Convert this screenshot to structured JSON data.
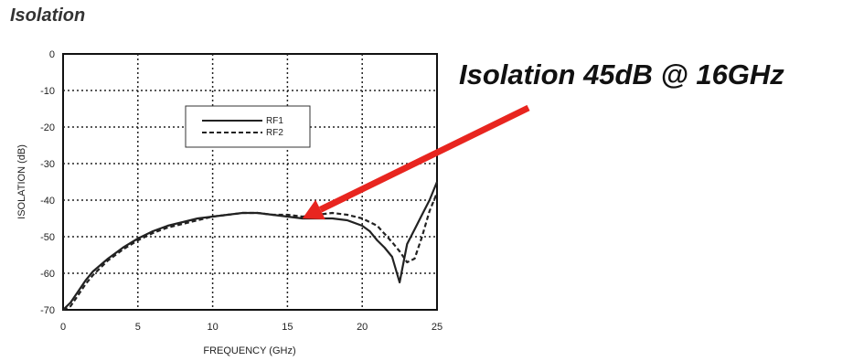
{
  "title": "Isolation",
  "annotation": {
    "text": "Isolation 45dB @ 16GHz",
    "arrow_color": "#e8251f",
    "points_to": {
      "x": 16,
      "y": -45
    }
  },
  "chart_data": {
    "type": "line",
    "title": "",
    "xlabel": "FREQUENCY (GHz)",
    "ylabel": "ISOLATION  (dB)",
    "xlim": [
      0,
      25
    ],
    "ylim": [
      -70,
      0
    ],
    "xticks": [
      0,
      5,
      10,
      15,
      20,
      25
    ],
    "yticks": [
      0,
      -10,
      -20,
      -30,
      -40,
      -50,
      -60,
      -70
    ],
    "grid": true,
    "grid_style": "dotted",
    "legend_position": "upper-center",
    "series": [
      {
        "name": "RF1",
        "style": "solid",
        "color": "#222222",
        "x": [
          0,
          0.5,
          1,
          1.5,
          2,
          3,
          4,
          5,
          6,
          7,
          8,
          9,
          10,
          11,
          12,
          13,
          14,
          15,
          16,
          17,
          18,
          19,
          20,
          20.5,
          21,
          21.5,
          22,
          22.5,
          23,
          23.5,
          24,
          24.5,
          25
        ],
        "y": [
          -70,
          -68,
          -65,
          -62,
          -59.5,
          -56,
          -53,
          -50.5,
          -48.5,
          -47,
          -46,
          -45,
          -44.5,
          -44,
          -43.5,
          -43.5,
          -44,
          -44.5,
          -45,
          -45,
          -45,
          -45.5,
          -47,
          -48.5,
          -51,
          -53,
          -55.5,
          -62.5,
          -52,
          -48,
          -44,
          -40,
          -35
        ]
      },
      {
        "name": "RF2",
        "style": "dashed",
        "color": "#222222",
        "x": [
          0,
          0.5,
          1,
          1.5,
          2,
          3,
          4,
          5,
          6,
          7,
          8,
          9,
          10,
          11,
          12,
          13,
          14,
          15,
          16,
          17,
          18,
          19,
          20,
          21,
          22,
          22.5,
          23,
          23.5,
          24,
          24.5,
          25
        ],
        "y": [
          -70,
          -69,
          -66,
          -63,
          -60.5,
          -56.5,
          -53.5,
          -51,
          -49,
          -47.5,
          -46.5,
          -45.5,
          -44.5,
          -44,
          -43.5,
          -43.5,
          -44,
          -44,
          -44.5,
          -44,
          -43.5,
          -44,
          -45,
          -47,
          -51.5,
          -54,
          -57,
          -56,
          -50,
          -43,
          -38
        ]
      }
    ]
  }
}
